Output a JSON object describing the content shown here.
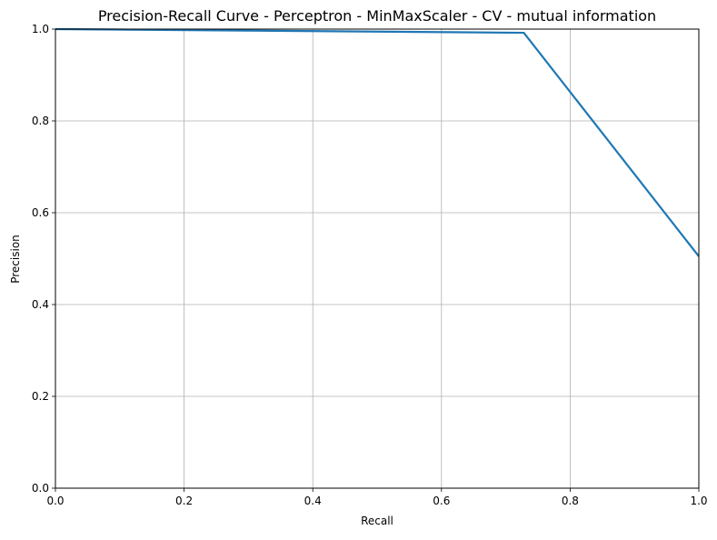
{
  "chart_data": {
    "type": "line",
    "title": "Precision-Recall Curve - Perceptron - MinMaxScaler - CV - mutual information",
    "xlabel": "Recall",
    "ylabel": "Precision",
    "xlim": [
      0,
      1
    ],
    "ylim": [
      0,
      1
    ],
    "grid": true,
    "x_ticks": [
      "0.0",
      "0.2",
      "0.4",
      "0.6",
      "0.8",
      "1.0"
    ],
    "y_ticks": [
      "0.0",
      "0.2",
      "0.4",
      "0.6",
      "0.8",
      "1.0"
    ],
    "series": [
      {
        "x": [
          0.0,
          0.728,
          1.0
        ],
        "y": [
          1.0,
          0.992,
          0.505
        ],
        "color": "#1f77b4"
      }
    ]
  }
}
